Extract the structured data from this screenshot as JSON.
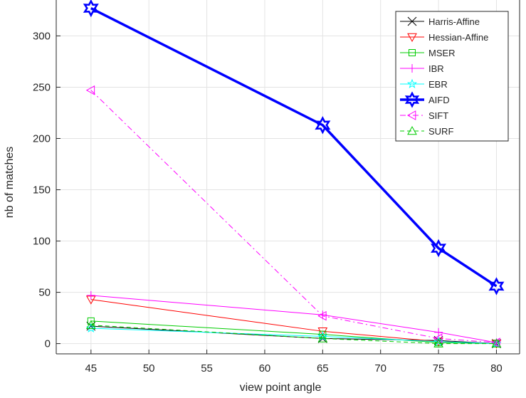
{
  "chart_data": {
    "type": "line",
    "title": "",
    "xlabel": "view point angle",
    "ylabel": "nb of matches",
    "xlim": [
      42,
      82
    ],
    "ylim": [
      -10,
      335
    ],
    "xticks": [
      45,
      50,
      55,
      60,
      65,
      70,
      75,
      80
    ],
    "yticks": [
      0,
      50,
      100,
      150,
      200,
      250,
      300
    ],
    "grid": true,
    "legend_position": "top-right",
    "x": [
      45,
      65,
      75,
      80
    ],
    "series": [
      {
        "name": "Harris-Affine",
        "values": [
          17,
          5,
          3,
          0
        ],
        "color": "#000000",
        "marker": "x",
        "line": "solid",
        "width": 1
      },
      {
        "name": "Hessian-Affine",
        "values": [
          43,
          12,
          2,
          0
        ],
        "color": "#ff0000",
        "marker": "triangle-down",
        "line": "solid",
        "width": 1
      },
      {
        "name": "MSER",
        "values": [
          22,
          9,
          1,
          0
        ],
        "color": "#00cc00",
        "marker": "square",
        "line": "solid",
        "width": 1
      },
      {
        "name": "IBR",
        "values": [
          47,
          28,
          11,
          1
        ],
        "color": "#ff00ff",
        "marker": "plus",
        "line": "solid",
        "width": 1
      },
      {
        "name": "EBR",
        "values": [
          15,
          7,
          2,
          0
        ],
        "color": "#00ffff",
        "marker": "star",
        "line": "solid",
        "width": 1
      },
      {
        "name": "AIFD",
        "values": [
          327,
          213,
          93,
          56
        ],
        "color": "#0000ff",
        "marker": "hexagram",
        "line": "solid",
        "width": 3.5
      },
      {
        "name": "SIFT",
        "values": [
          247,
          27,
          5,
          1
        ],
        "color": "#ff00ff",
        "marker": "triangle-left",
        "line": "dashdot",
        "width": 1
      },
      {
        "name": "SURF",
        "values": [
          18,
          5,
          0,
          0
        ],
        "color": "#00cc00",
        "marker": "triangle-up",
        "line": "dashed",
        "width": 1
      }
    ]
  }
}
